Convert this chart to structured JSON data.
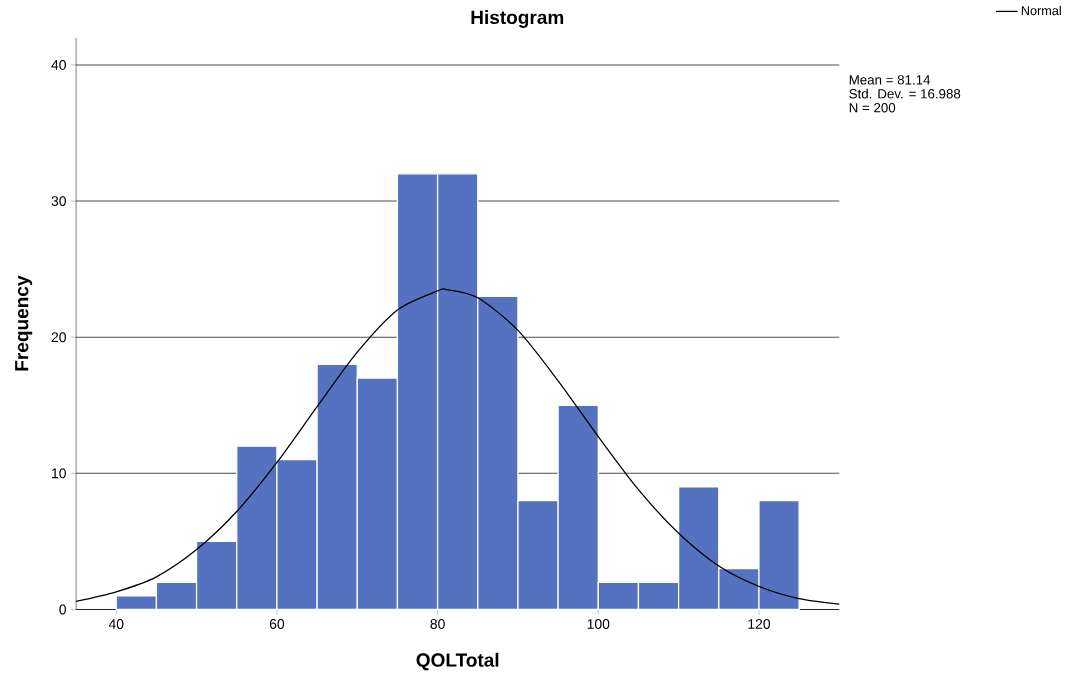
{
  "chart_data": {
    "type": "histogram",
    "title": "Histogram",
    "xlabel": "QOLTotal",
    "ylabel": "Frequency",
    "bins": [
      40,
      45,
      50,
      55,
      60,
      65,
      70,
      75,
      80,
      85,
      90,
      95,
      100,
      105,
      110,
      115,
      120,
      125
    ],
    "values": [
      1,
      2,
      5,
      12,
      11,
      18,
      17,
      32,
      32,
      23,
      8,
      15,
      2,
      2,
      9,
      3,
      8
    ],
    "color": "#5572c0",
    "series": [
      {
        "type": "line",
        "name": "Normal",
        "color": "#000000",
        "x": [
          35,
          40,
          45,
          50,
          55,
          60,
          65,
          70,
          75,
          80,
          81.14,
          85,
          90,
          95,
          100,
          105,
          110,
          115,
          120,
          125,
          130
        ],
        "values": [
          0.6,
          1.3,
          2.4,
          4.4,
          7.2,
          10.8,
          14.9,
          18.9,
          22.0,
          23.4,
          23.5,
          22.9,
          20.5,
          16.8,
          12.7,
          8.8,
          5.6,
          3.2,
          1.7,
          0.8,
          0.4
        ]
      }
    ],
    "annotations": [
      "Mean = 81.14",
      "Std. Dev. = 16.988",
      "N = 200"
    ],
    "xlim": [
      35,
      130
    ],
    "ylim": [
      0,
      42
    ],
    "xticks": [
      40,
      60,
      80,
      100,
      120
    ],
    "yticks": [
      0,
      10,
      20,
      30,
      40
    ],
    "grid": "y",
    "legend": "top right",
    "marker": "none",
    "line_style": "solid"
  }
}
